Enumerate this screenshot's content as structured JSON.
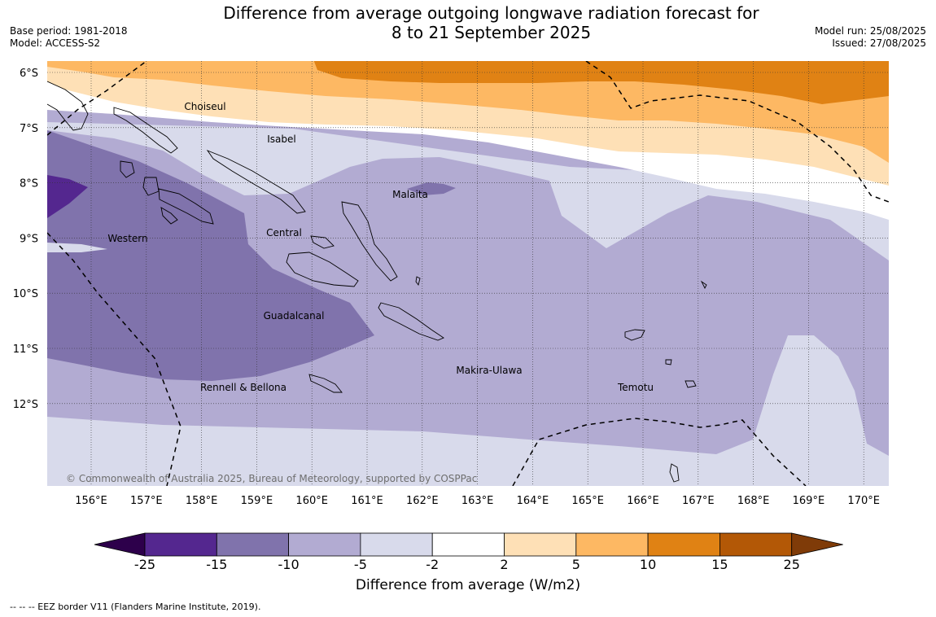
{
  "header": {
    "title_line1": "Difference from average outgoing longwave radiation forecast for",
    "title_line2": "8 to 21 September 2025",
    "base_period": "Base period: 1981-2018",
    "model": "Model: ACCESS-S2",
    "model_run": "Model run: 25/08/2025",
    "issued": "Issued: 27/08/2025"
  },
  "map": {
    "copyright": "© Commonwealth of Australia 2025, Bureau of Meteorology, supported by COSPPac",
    "lat_labels": [
      "6°S",
      "7°S",
      "8°S",
      "9°S",
      "10°S",
      "11°S",
      "12°S"
    ],
    "lon_labels": [
      "156°E",
      "157°E",
      "158°E",
      "159°E",
      "160°E",
      "161°E",
      "162°E",
      "163°E",
      "164°E",
      "165°E",
      "166°E",
      "167°E",
      "168°E",
      "169°E",
      "170°E"
    ],
    "places": [
      "Choiseul",
      "Isabel",
      "Malaita",
      "Western",
      "Central",
      "Guadalcanal",
      "Makira-Ulawa",
      "Rennell & Bellona",
      "Temotu"
    ]
  },
  "colorbar": {
    "title": "Difference from average (W/m2)",
    "tick_labels": [
      "-25",
      "-15",
      "-10",
      "-5",
      "-2",
      "2",
      "5",
      "10",
      "15",
      "25"
    ],
    "colors": [
      "#54278f",
      "#8073ac",
      "#b2abd2",
      "#d8daeb",
      "#ffffff",
      "#fee0b6",
      "#fdb863",
      "#e08214",
      "#b35806"
    ],
    "under_color": "#2d004b",
    "over_color": "#7f3b08"
  },
  "footnote": "-- -- -- EEZ border V11 (Flanders Marine Institute, 2019)."
}
